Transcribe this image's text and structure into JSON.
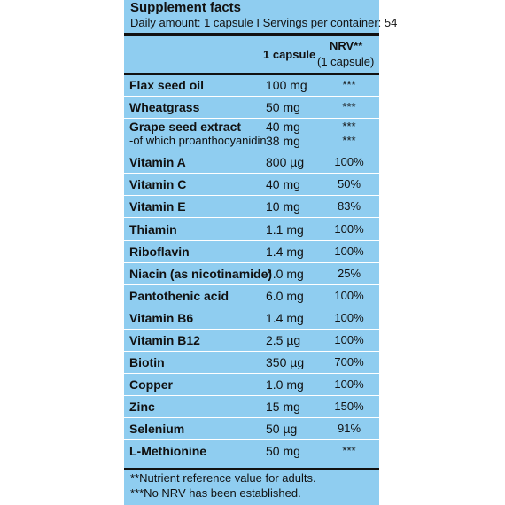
{
  "title": "Supplement facts",
  "subtitle": "Daily amount: 1 capsule  I  Servings per container: 54",
  "header": {
    "amount_label": "1 capsule",
    "nrv_label": "NRV**",
    "nrv_sub": "(1 capsule)"
  },
  "rows": [
    {
      "name": "Flax seed oil",
      "amount": "100 mg",
      "nrv": "***"
    },
    {
      "name": "Wheatgrass",
      "amount": "50 mg",
      "nrv": "***"
    },
    {
      "name": "Grape seed extract",
      "amount": "40 mg",
      "nrv": "***",
      "sub_name": "-of which proanthocyanidin",
      "sub_amount": "38 mg",
      "sub_nrv": "***"
    },
    {
      "name": "Vitamin A",
      "amount": "800 µg",
      "nrv": "100%"
    },
    {
      "name": "Vitamin C",
      "amount": "40 mg",
      "nrv": "50%"
    },
    {
      "name": "Vitamin E",
      "amount": "10 mg",
      "nrv": "83%"
    },
    {
      "name": "Thiamin",
      "amount": "1.1 mg",
      "nrv": "100%"
    },
    {
      "name": "Riboflavin",
      "amount": "1.4 mg",
      "nrv": "100%"
    },
    {
      "name": "Niacin (as nicotinamide)",
      "amount": "4.0 mg",
      "nrv": "25%"
    },
    {
      "name": "Pantothenic acid",
      "amount": "6.0 mg",
      "nrv": "100%"
    },
    {
      "name": "Vitamin B6",
      "amount": "1.4 mg",
      "nrv": "100%"
    },
    {
      "name": "Vitamin B12",
      "amount": "2.5 µg",
      "nrv": "100%"
    },
    {
      "name": "Biotin",
      "amount": "350 µg",
      "nrv": "700%"
    },
    {
      "name": "Copper",
      "amount": "1.0 mg",
      "nrv": "100%"
    },
    {
      "name": "Zinc",
      "amount": "15 mg",
      "nrv": "150%"
    },
    {
      "name": "Selenium",
      "amount": "50 µg",
      "nrv": "91%"
    },
    {
      "name": "L-Methionine",
      "amount": "50 mg",
      "nrv": "***"
    }
  ],
  "footnotes": [
    "**Nutrient reference value for adults.",
    "***No NRV has been established."
  ]
}
